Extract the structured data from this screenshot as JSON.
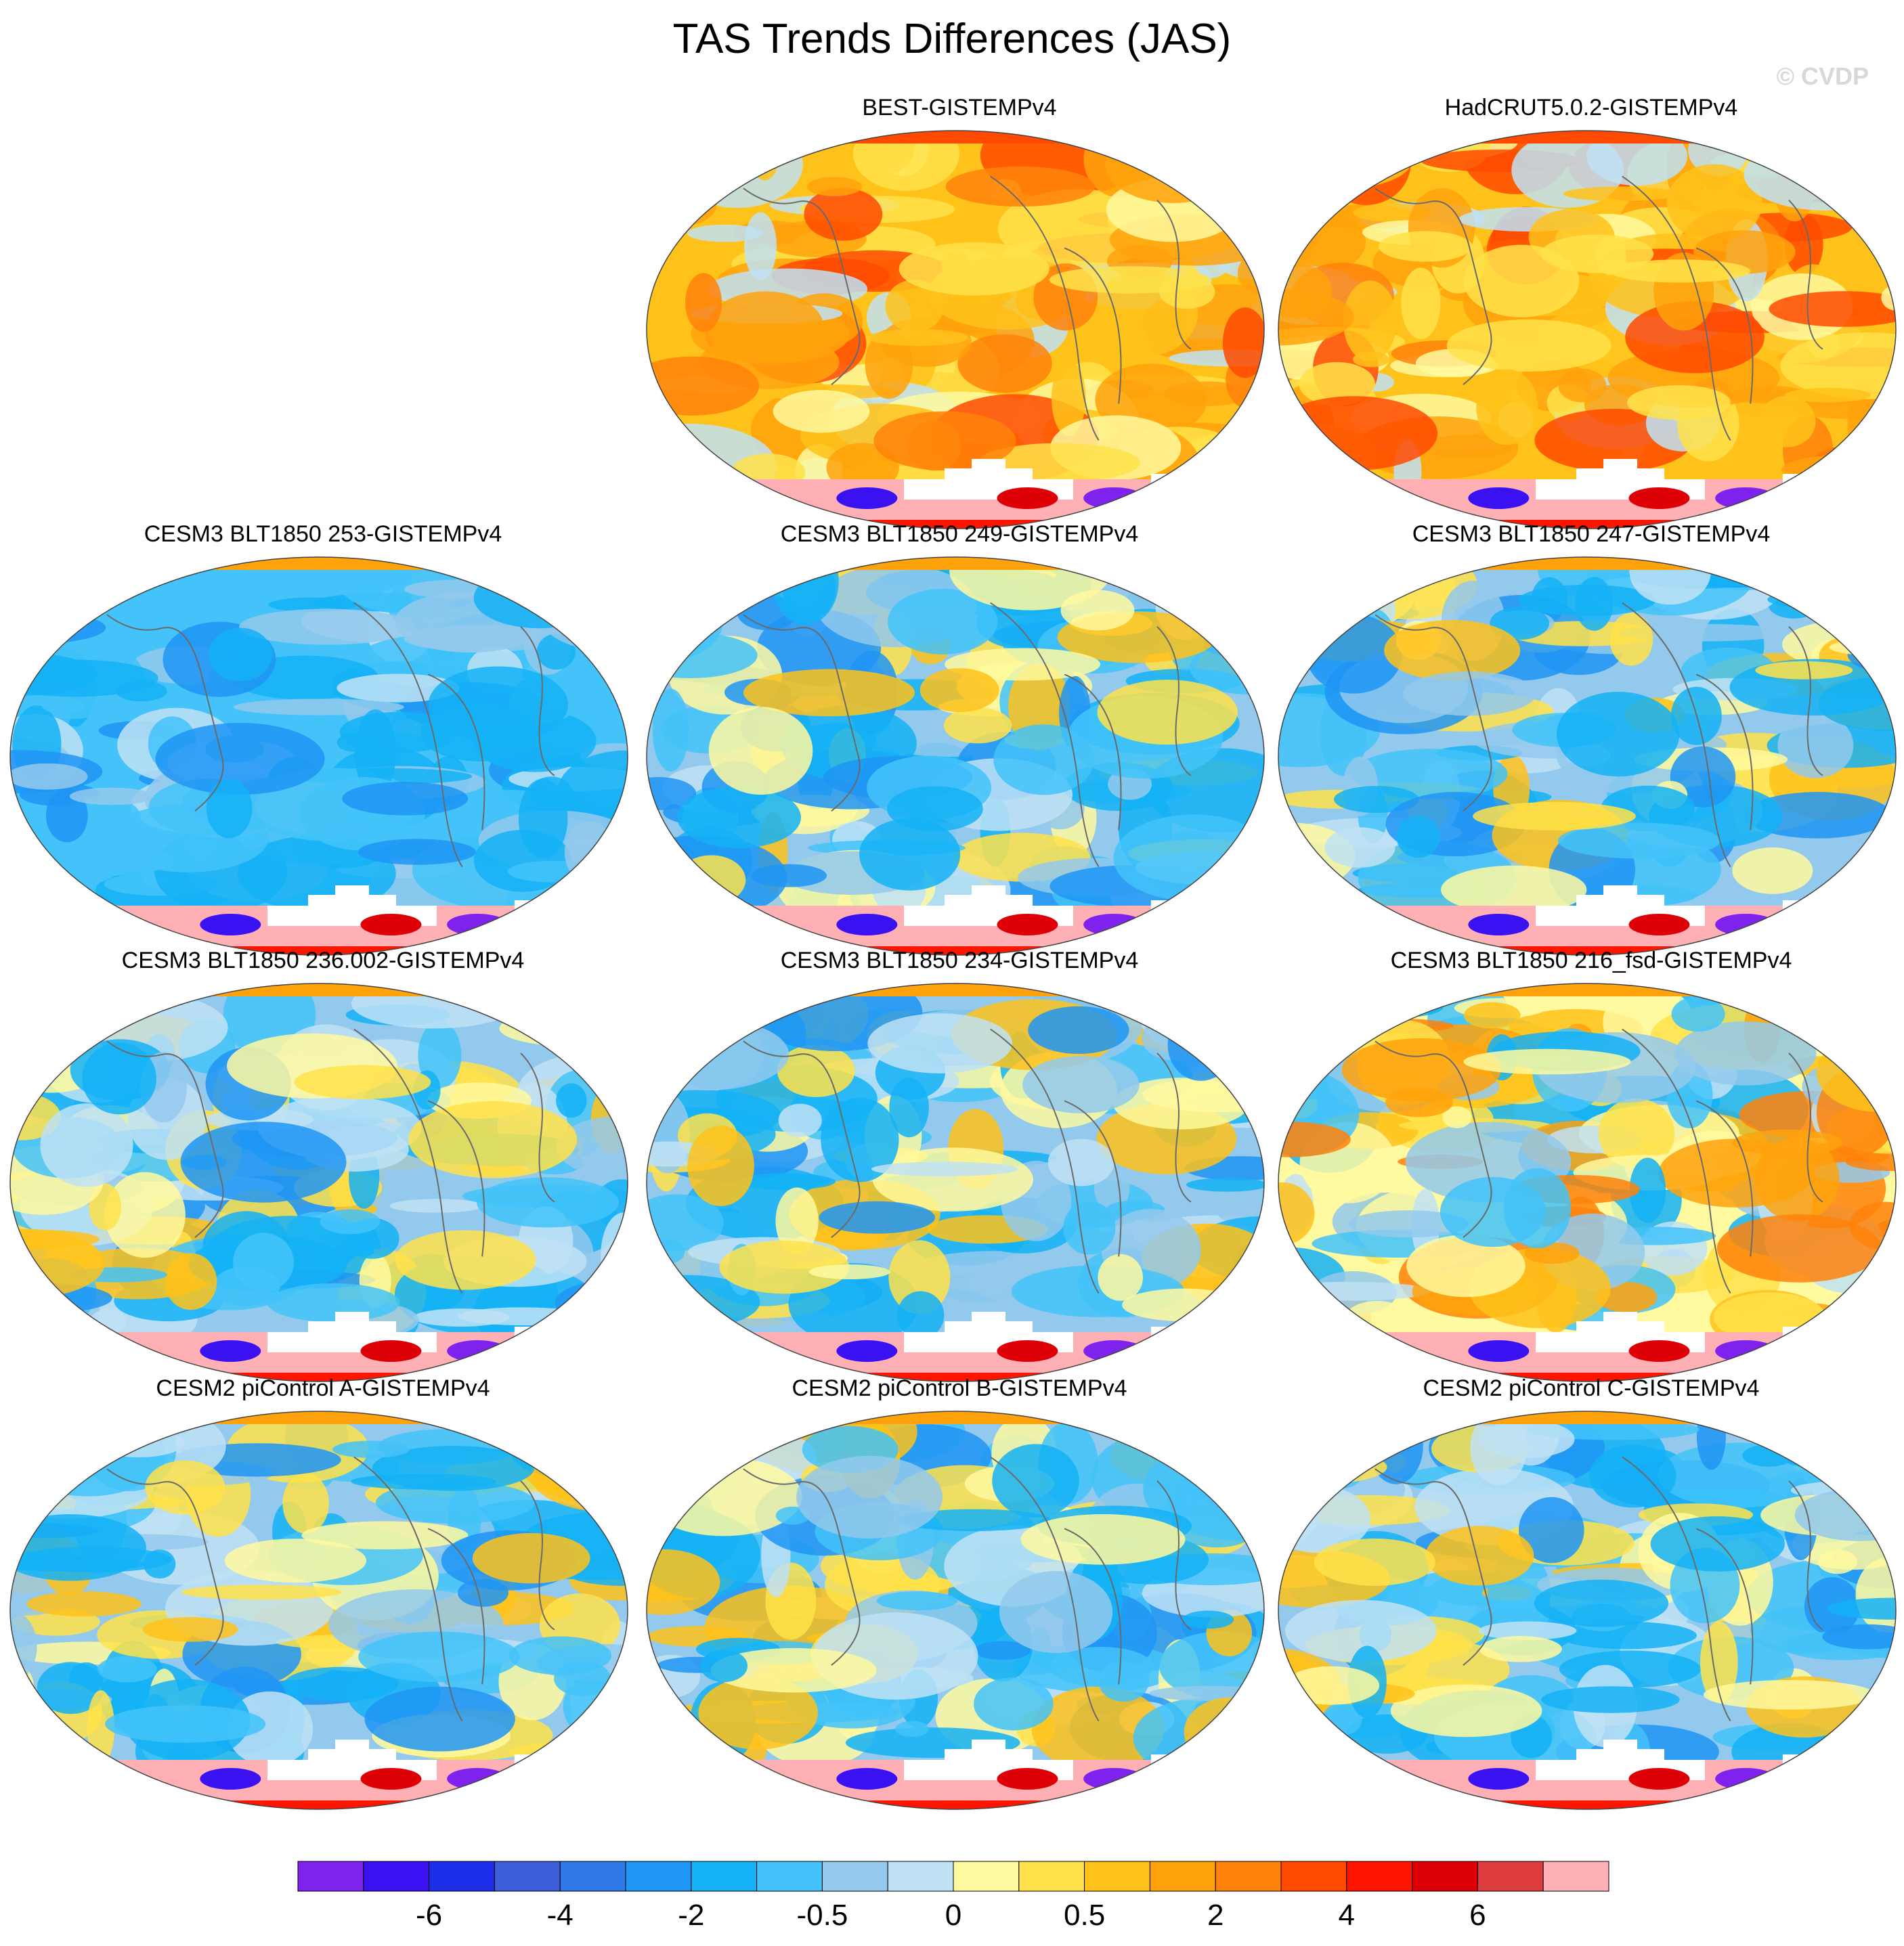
{
  "title": "TAS Trends Differences (JAS)",
  "watermark": "© CVDP",
  "panels": [
    {
      "label": "BEST-GISTEMPv4",
      "row": 0,
      "col": 1,
      "palette": "warm",
      "seed": 11
    },
    {
      "label": "HadCRUT5.0.2-GISTEMPv4",
      "row": 0,
      "col": 2,
      "palette": "warm",
      "seed": 23
    },
    {
      "label": "CESM3 BLT1850 253-GISTEMPv4",
      "row": 1,
      "col": 0,
      "palette": "cool",
      "seed": 37
    },
    {
      "label": "CESM3 BLT1850 249-GISTEMPv4",
      "row": 1,
      "col": 1,
      "palette": "mixed",
      "seed": 41
    },
    {
      "label": "CESM3 BLT1850 247-GISTEMPv4",
      "row": 1,
      "col": 2,
      "palette": "mixed",
      "seed": 53
    },
    {
      "label": "CESM3 BLT1850 236.002-GISTEMPv4",
      "row": 2,
      "col": 0,
      "palette": "mixed",
      "seed": 61
    },
    {
      "label": "CESM3 BLT1850 234-GISTEMPv4",
      "row": 2,
      "col": 1,
      "palette": "mixed",
      "seed": 73
    },
    {
      "label": "CESM3 BLT1850 216_fsd-GISTEMPv4",
      "row": 2,
      "col": 2,
      "palette": "mixedwarm",
      "seed": 89
    },
    {
      "label": "CESM2 piControl A-GISTEMPv4",
      "row": 3,
      "col": 0,
      "palette": "mixed",
      "seed": 97
    },
    {
      "label": "CESM2 piControl B-GISTEMPv4",
      "row": 3,
      "col": 1,
      "palette": "mixed",
      "seed": 103
    },
    {
      "label": "CESM2 piControl C-GISTEMPv4",
      "row": 3,
      "col": 2,
      "palette": "mixed",
      "seed": 113
    }
  ],
  "colorbar": {
    "colors": [
      "#7f22ee",
      "#3a11f0",
      "#1c2ee8",
      "#3d5ed9",
      "#2f7ae8",
      "#1f95f5",
      "#14b2f6",
      "#43c3f9",
      "#93c9ec",
      "#bfe2f5",
      "#fff99f",
      "#ffe24a",
      "#ffc21a",
      "#ffa20c",
      "#ff820a",
      "#ff4a00",
      "#ff1400",
      "#dd0006",
      "#dc3c3c",
      "#ffb0b4"
    ],
    "tick_labels": [
      "-6",
      "-4",
      "-2",
      "-0.5",
      "0",
      "0.5",
      "2",
      "4",
      "6"
    ],
    "tick_boundaries": [
      2,
      4,
      6,
      8,
      10,
      12,
      14,
      16,
      18
    ]
  }
}
